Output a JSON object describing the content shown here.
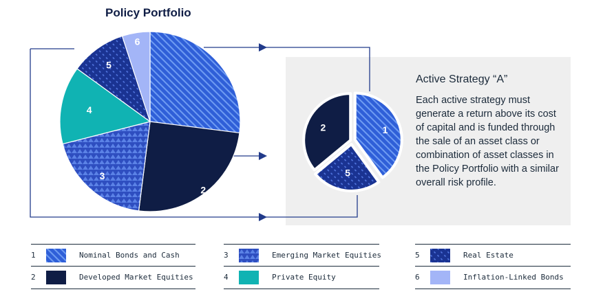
{
  "title": "Policy Portfolio",
  "colors": {
    "bright_blue": "#2f5fd8",
    "stripe_light": "#6f9cf2",
    "navy": "#0f1d45",
    "mid_blue": "#2e4ec0",
    "teal": "#10b3b3",
    "light_blue": "#a3b5f7",
    "arrow_line": "#213a8a"
  },
  "chart_data": [
    {
      "type": "pie",
      "title": "Policy Portfolio",
      "slices": [
        {
          "id": "1",
          "label": "Nominal Bonds and Cash",
          "value": 27,
          "fill": "url(#pat-diag)"
        },
        {
          "id": "2",
          "label": "Developed Market Equities",
          "value": 25,
          "fill": "#0f1d45"
        },
        {
          "id": "3",
          "label": "Emerging Market Equities",
          "value": 19,
          "fill": "url(#pat-tri)"
        },
        {
          "id": "4",
          "label": "Private Equity",
          "value": 14,
          "fill": "#10b3b3"
        },
        {
          "id": "5",
          "label": "Real Estate",
          "value": 10,
          "fill": "url(#pat-re)"
        },
        {
          "id": "6",
          "label": "Inflation-Linked Bonds",
          "value": 5,
          "fill": "#a3b5f7"
        }
      ]
    },
    {
      "type": "pie",
      "title": "Active Strategy “A”",
      "slices": [
        {
          "id": "1",
          "label": "Nominal Bonds and Cash",
          "value": 40,
          "fill": "url(#pat-diag)"
        },
        {
          "id": "5",
          "label": "Real Estate",
          "value": 24,
          "fill": "url(#pat-re)"
        },
        {
          "id": "2",
          "label": "Developed Market Equities",
          "value": 36,
          "fill": "#0f1d45"
        }
      ]
    }
  ],
  "callout": {
    "title": "Active Strategy “A”",
    "body": "Each active strategy must generate a return above its cost of capital and is funded through the sale of an asset class or combination of asset classes in the Policy Portfolio with a similar overall risk profile."
  },
  "legend": [
    {
      "num": "1",
      "label": "Nominal Bonds and Cash",
      "swatch": "diag"
    },
    {
      "num": "2",
      "label": "Developed Market Equities",
      "swatch": "navy"
    },
    {
      "num": "3",
      "label": "Emerging Market Equities",
      "swatch": "tri"
    },
    {
      "num": "4",
      "label": "Private Equity",
      "swatch": "teal"
    },
    {
      "num": "5",
      "label": "Real Estate",
      "swatch": "re"
    },
    {
      "num": "6",
      "label": "Inflation-Linked Bonds",
      "swatch": "light"
    }
  ]
}
